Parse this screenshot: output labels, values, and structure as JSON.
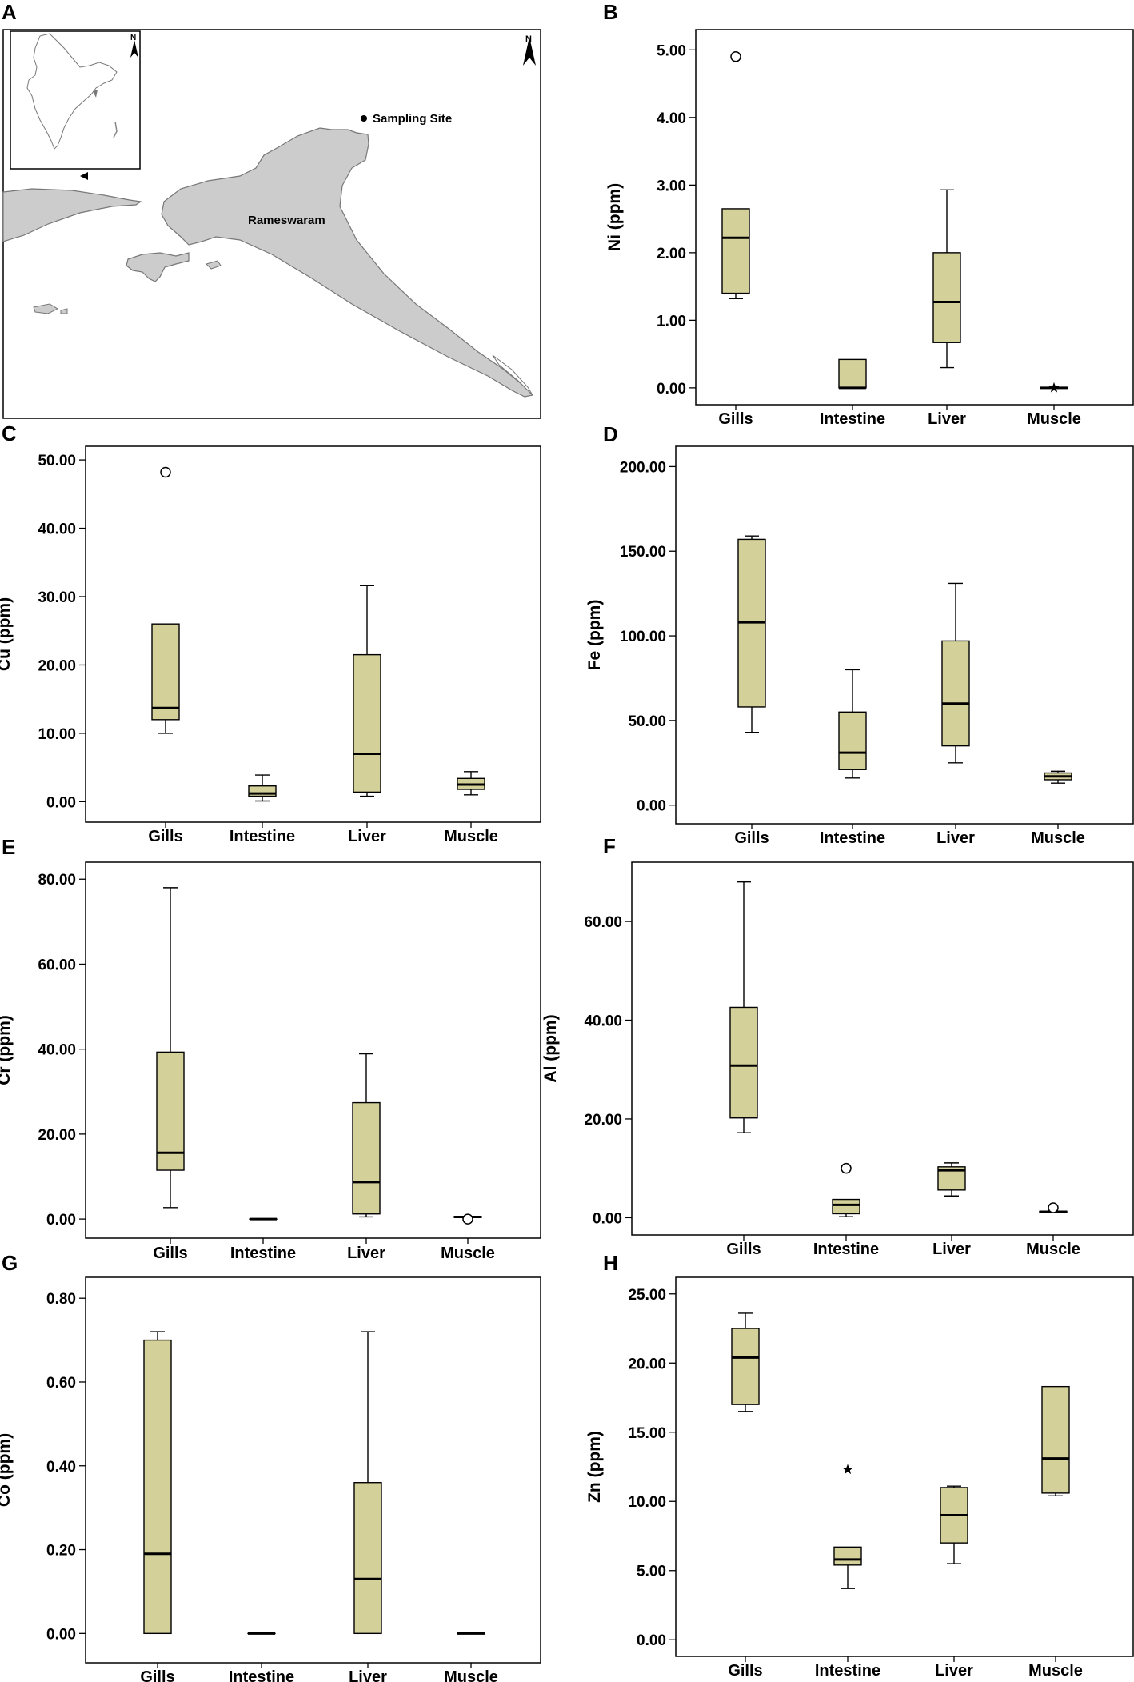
{
  "figure": {
    "panel_a": {
      "label": "A",
      "location_label": "Rameswaram",
      "legend_label": "Sampling Site",
      "north_label": "N",
      "inset_north_label": "N"
    }
  },
  "chart_data": [
    {
      "panel": "B",
      "type": "box",
      "ylabel": "Ni (ppm)",
      "categories": [
        "Gills",
        "Intestine",
        "Liver",
        "Muscle"
      ],
      "ylim": [
        -0.25,
        5.3
      ],
      "yticks": [
        0,
        1,
        2,
        3,
        4,
        5
      ],
      "tick_labels": [
        "0.00",
        "1.00",
        "2.00",
        "3.00",
        "4.00",
        "5.00"
      ],
      "boxes": [
        {
          "min": 1.32,
          "q1": 1.4,
          "median": 2.22,
          "q3": 2.65,
          "max": 2.65
        },
        {
          "min": 0.0,
          "q1": 0.0,
          "median": 0.0,
          "q3": 0.42,
          "max": 0.42
        },
        {
          "min": 0.3,
          "q1": 0.67,
          "median": 1.27,
          "q3": 2.0,
          "max": 2.93
        },
        {
          "min": 0.0,
          "q1": 0.0,
          "median": 0.0,
          "q3": 0.0,
          "max": 0.0
        }
      ],
      "outliers": [
        {
          "category": "Gills",
          "value": 4.9,
          "marker": "circle"
        }
      ],
      "extremes": [
        {
          "category": "Muscle",
          "value": 0.0,
          "marker": "star"
        }
      ]
    },
    {
      "panel": "C",
      "type": "box",
      "ylabel": "Cu (ppm)",
      "categories": [
        "Gills",
        "Intestine",
        "Liver",
        "Muscle"
      ],
      "ylim": [
        -3,
        52
      ],
      "yticks": [
        0,
        10,
        20,
        30,
        40,
        50
      ],
      "tick_labels": [
        "0.00",
        "10.00",
        "20.00",
        "30.00",
        "40.00",
        "50.00"
      ],
      "boxes": [
        {
          "min": 10.0,
          "q1": 12.0,
          "median": 13.7,
          "q3": 26.0,
          "max": 26.0
        },
        {
          "min": 0.1,
          "q1": 0.8,
          "median": 1.2,
          "q3": 2.3,
          "max": 3.9
        },
        {
          "min": 0.8,
          "q1": 1.4,
          "median": 7.0,
          "q3": 21.5,
          "max": 31.6
        },
        {
          "min": 1.0,
          "q1": 1.8,
          "median": 2.5,
          "q3": 3.4,
          "max": 4.4
        }
      ],
      "outliers": [
        {
          "category": "Gills",
          "value": 48.2,
          "marker": "circle"
        }
      ],
      "extremes": []
    },
    {
      "panel": "D",
      "type": "box",
      "ylabel": "Fe (ppm)",
      "categories": [
        "Gills",
        "Intestine",
        "Liver",
        "Muscle"
      ],
      "ylim": [
        -11,
        212
      ],
      "yticks": [
        0,
        50,
        100,
        150,
        200
      ],
      "tick_labels": [
        "0.00",
        "50.00",
        "100.00",
        "150.00",
        "200.00"
      ],
      "boxes": [
        {
          "min": 43.0,
          "q1": 58.0,
          "median": 108.0,
          "q3": 157.0,
          "max": 159.0
        },
        {
          "min": 16.0,
          "q1": 21.0,
          "median": 31.0,
          "q3": 55.0,
          "max": 80.0
        },
        {
          "min": 25.0,
          "q1": 35.0,
          "median": 60.0,
          "q3": 97.0,
          "max": 131.0
        },
        {
          "min": 13.0,
          "q1": 15.0,
          "median": 17.0,
          "q3": 19.0,
          "max": 20.0
        }
      ],
      "outliers": [],
      "extremes": []
    },
    {
      "panel": "E",
      "type": "box",
      "ylabel": "Cr (ppm)",
      "categories": [
        "Gills",
        "Intestine",
        "Liver",
        "Muscle"
      ],
      "ylim": [
        -4.5,
        84
      ],
      "yticks": [
        0,
        20,
        40,
        60,
        80
      ],
      "tick_labels": [
        "0.00",
        "20.00",
        "40.00",
        "60.00",
        "80.00"
      ],
      "boxes": [
        {
          "min": 2.7,
          "q1": 11.5,
          "median": 15.6,
          "q3": 39.3,
          "max": 78.0
        },
        {
          "min": 0.0,
          "q1": 0.0,
          "median": 0.0,
          "q3": 0.0,
          "max": 0.0
        },
        {
          "min": 0.5,
          "q1": 1.2,
          "median": 8.7,
          "q3": 27.4,
          "max": 38.9
        },
        {
          "min": 0.4,
          "q1": 0.4,
          "median": 0.5,
          "q3": 0.6,
          "max": 0.6
        }
      ],
      "outliers": [
        {
          "category": "Muscle",
          "value": 0.0,
          "marker": "circle"
        }
      ],
      "extremes": []
    },
    {
      "panel": "F",
      "type": "box",
      "ylabel": "Al (ppm)",
      "categories": [
        "Gills",
        "Intestine",
        "Liver",
        "Muscle"
      ],
      "ylim": [
        -3.5,
        72
      ],
      "yticks": [
        0,
        20,
        40,
        60
      ],
      "tick_labels": [
        "0.00",
        "20.00",
        "40.00",
        "60.00"
      ],
      "boxes": [
        {
          "min": 17.2,
          "q1": 20.2,
          "median": 30.8,
          "q3": 42.6,
          "max": 68.0
        },
        {
          "min": 0.2,
          "q1": 0.8,
          "median": 2.6,
          "q3": 3.7,
          "max": 3.7
        },
        {
          "min": 4.4,
          "q1": 5.6,
          "median": 9.6,
          "q3": 10.3,
          "max": 11.1
        },
        {
          "min": 1.0,
          "q1": 1.0,
          "median": 1.2,
          "q3": 1.3,
          "max": 1.3
        }
      ],
      "outliers": [
        {
          "category": "Intestine",
          "value": 10.0,
          "marker": "circle"
        },
        {
          "category": "Muscle",
          "value": 2.0,
          "marker": "circle"
        }
      ],
      "extremes": []
    },
    {
      "panel": "G",
      "type": "box",
      "ylabel": "Co (ppm)",
      "categories": [
        "Gills",
        "Intestine",
        "Liver",
        "Muscle"
      ],
      "ylim": [
        -0.07,
        0.85
      ],
      "yticks": [
        0,
        0.2,
        0.4,
        0.6,
        0.8
      ],
      "tick_labels": [
        "0.00",
        "0.20",
        "0.40",
        "0.60",
        "0.80"
      ],
      "boxes": [
        {
          "min": 0.0,
          "q1": 0.0,
          "median": 0.19,
          "q3": 0.7,
          "max": 0.72
        },
        {
          "min": 0.0,
          "q1": 0.0,
          "median": 0.0,
          "q3": 0.0,
          "max": 0.0
        },
        {
          "min": 0.0,
          "q1": 0.0,
          "median": 0.13,
          "q3": 0.36,
          "max": 0.72
        },
        {
          "min": 0.0,
          "q1": 0.0,
          "median": 0.0,
          "q3": 0.0,
          "max": 0.0
        }
      ],
      "outliers": [],
      "extremes": []
    },
    {
      "panel": "H",
      "type": "box",
      "ylabel": "Zn (ppm)",
      "categories": [
        "Gills",
        "Intestine",
        "Liver",
        "Muscle"
      ],
      "ylim": [
        -1.2,
        26.2
      ],
      "yticks": [
        0,
        5,
        10,
        15,
        20,
        25
      ],
      "tick_labels": [
        "0.00",
        "5.00",
        "10.00",
        "15.00",
        "20.00",
        "25.00"
      ],
      "boxes": [
        {
          "min": 16.5,
          "q1": 17.0,
          "median": 20.4,
          "q3": 22.5,
          "max": 23.6
        },
        {
          "min": 3.7,
          "q1": 5.4,
          "median": 5.8,
          "q3": 6.7,
          "max": 6.7
        },
        {
          "min": 5.5,
          "q1": 7.0,
          "median": 9.0,
          "q3": 11.0,
          "max": 11.1
        },
        {
          "min": 10.4,
          "q1": 10.6,
          "median": 13.1,
          "q3": 18.3,
          "max": 18.3
        }
      ],
      "outliers": [],
      "extremes": [
        {
          "category": "Intestine",
          "value": 12.3,
          "marker": "star"
        }
      ]
    }
  ],
  "colors": {
    "box_fill": "#d4d09a",
    "stroke": "#000000",
    "land": "#cccccc",
    "background": "#ffffff"
  }
}
